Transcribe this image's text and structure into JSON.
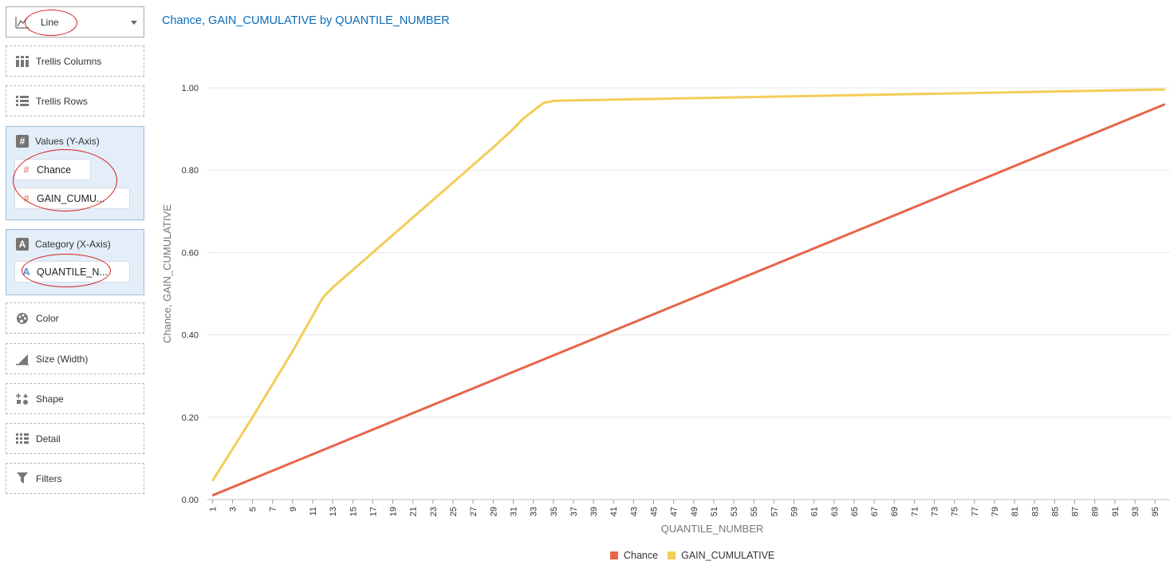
{
  "chart_type_select": {
    "value": "Line",
    "icon": "line-chart-icon"
  },
  "grammar": {
    "trellis_columns": {
      "label": "Trellis Columns",
      "icon": "trellis-columns-icon"
    },
    "trellis_rows": {
      "label": "Trellis Rows",
      "icon": "trellis-rows-icon"
    },
    "values": {
      "label": "Values (Y-Axis)",
      "icon_char": "#",
      "items": [
        "Chance",
        "GAIN_CUMU..."
      ]
    },
    "category": {
      "label": "Category (X-Axis)",
      "icon_char": "A",
      "items": [
        "QUANTILE_N..."
      ]
    },
    "color": {
      "label": "Color",
      "icon": "palette-icon"
    },
    "size": {
      "label": "Size (Width)",
      "icon": "size-icon"
    },
    "shape": {
      "label": "Shape",
      "icon": "shape-icon"
    },
    "detail": {
      "label": "Detail",
      "icon": "detail-icon"
    },
    "filters": {
      "label": "Filters",
      "icon": "filter-icon"
    }
  },
  "chart_data": {
    "type": "line",
    "title": "Chance, GAIN_CUMULATIVE by QUANTILE_NUMBER",
    "xlabel": "QUANTILE_NUMBER",
    "ylabel": "Chance, GAIN_CUMULATIVE",
    "x_range": [
      1,
      96
    ],
    "x_ticks": [
      1,
      3,
      5,
      7,
      9,
      11,
      13,
      15,
      17,
      19,
      21,
      23,
      25,
      27,
      29,
      31,
      33,
      35,
      37,
      39,
      41,
      43,
      45,
      47,
      49,
      51,
      53,
      55,
      57,
      59,
      61,
      63,
      65,
      67,
      69,
      71,
      73,
      75,
      77,
      79,
      81,
      83,
      85,
      87,
      89,
      91,
      93,
      95
    ],
    "ylim": [
      0,
      1.0
    ],
    "y_ticks": [
      "0.00",
      "0.20",
      "0.40",
      "0.60",
      "0.80",
      "1.00"
    ],
    "grid": true,
    "legend_position": "bottom",
    "series": [
      {
        "name": "Chance",
        "color": "#e8654a",
        "points": [
          [
            1,
            0.01
          ],
          [
            96,
            0.96
          ]
        ]
      },
      {
        "name": "GAIN_CUMULATIVE",
        "color": "#f3cd57",
        "points": [
          [
            1,
            0.045
          ],
          [
            5,
            0.2
          ],
          [
            9,
            0.36
          ],
          [
            12,
            0.49
          ],
          [
            13,
            0.515
          ],
          [
            17,
            0.6
          ],
          [
            21,
            0.685
          ],
          [
            25,
            0.77
          ],
          [
            29,
            0.855
          ],
          [
            31,
            0.9
          ],
          [
            32,
            0.925
          ],
          [
            34,
            0.963
          ],
          [
            35,
            0.968
          ],
          [
            36,
            0.969
          ],
          [
            96,
            0.996
          ]
        ]
      }
    ]
  }
}
